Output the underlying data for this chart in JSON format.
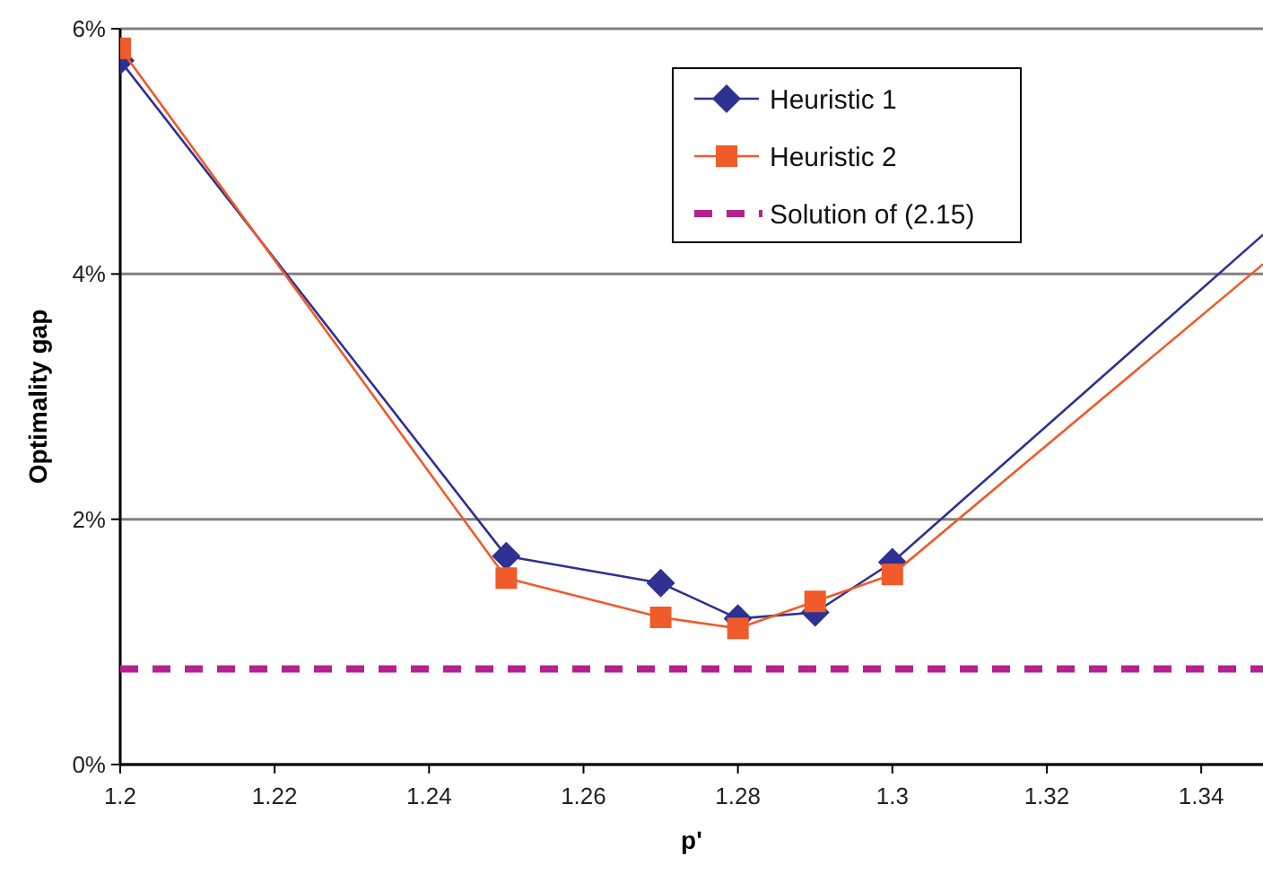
{
  "chart_data": {
    "type": "line",
    "xlabel": "p'",
    "ylabel": "Optimality gap",
    "xlim": [
      1.2,
      1.348
    ],
    "xticks": [
      1.2,
      1.22,
      1.24,
      1.26,
      1.28,
      1.3,
      1.32,
      1.34
    ],
    "ylim": [
      0,
      6
    ],
    "yticks": [
      {
        "value": 0,
        "label": "0%"
      },
      {
        "value": 2,
        "label": "2%"
      },
      {
        "value": 4,
        "label": "4%"
      },
      {
        "value": 6,
        "label": "6%"
      }
    ],
    "grid": "y",
    "legend": "top right",
    "series": [
      {
        "name": "Heuristic 1",
        "color": "#2e3192",
        "marker": "diamond",
        "x": [
          1.2,
          1.25,
          1.27,
          1.28,
          1.29,
          1.3,
          1.348
        ],
        "values": [
          5.74,
          1.7,
          1.48,
          1.19,
          1.24,
          1.65,
          4.32
        ]
      },
      {
        "name": "Heuristic 2",
        "color": "#f15a29",
        "marker": "square",
        "x": [
          1.2,
          1.25,
          1.27,
          1.28,
          1.29,
          1.3,
          1.348
        ],
        "values": [
          5.84,
          1.52,
          1.2,
          1.11,
          1.33,
          1.55,
          4.08
        ]
      }
    ],
    "ref_lines": [
      {
        "axis": "y",
        "value": 0.78,
        "label": "Solution of (2.15)",
        "color": "#b5218e",
        "line_style": "dashed"
      }
    ]
  }
}
